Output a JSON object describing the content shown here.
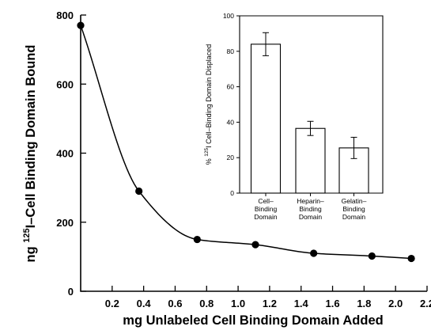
{
  "chart_data": [
    {
      "type": "scatter",
      "title": "",
      "xlabel": "mg Unlabeled Cell Binding Domain Added",
      "ylabel": "ng ¹²⁵I–Cell Binding Domain Bound",
      "ylabel_parts": {
        "prefix": "ng ",
        "superscript": "125",
        "suffix": "I–Cell Binding Domain Bound"
      },
      "xlim": [
        0,
        2.2
      ],
      "ylim": [
        0,
        800
      ],
      "xticks": [
        0.2,
        0.4,
        0.6,
        0.8,
        1.0,
        1.2,
        1.4,
        1.6,
        1.8,
        2.0,
        2.2
      ],
      "xtick_labels": [
        "0.2",
        "0.4",
        "0.6",
        "0.8",
        "1.0",
        "1.2",
        "1.4",
        "1.6",
        "1.8",
        "2.0",
        "2.2"
      ],
      "yticks": [
        0,
        200,
        400,
        600,
        800
      ],
      "ytick_labels": [
        "0",
        "200",
        "400",
        "600",
        "800"
      ],
      "x": [
        0.0,
        0.37,
        0.74,
        1.11,
        1.48,
        1.85,
        2.1
      ],
      "y": [
        770,
        290,
        150,
        135,
        110,
        102,
        95
      ],
      "fit_curve": true,
      "grid": false
    },
    {
      "type": "bar",
      "inset": true,
      "title": "",
      "xlabel": "",
      "ylabel": "% ¹²⁵I Cell–Binding Domain Displaced",
      "ylabel_parts": {
        "prefix": "% ",
        "superscript": "125",
        "suffix": "I Cell–Binding Domain Displaced"
      },
      "ylim": [
        0,
        100
      ],
      "yticks": [
        0,
        20,
        40,
        60,
        80,
        100
      ],
      "ytick_labels": [
        "0",
        "20",
        "40",
        "60",
        "80",
        "100"
      ],
      "categories": [
        "Cell–Binding Domain",
        "Heparin–Binding Domain",
        "Gelatin–Binding Domain"
      ],
      "category_lines": [
        [
          "Cell–",
          "Binding",
          "Domain"
        ],
        [
          "Heparin–",
          "Binding",
          "Domain"
        ],
        [
          "Gelatin–",
          "Binding",
          "Domain"
        ]
      ],
      "values": [
        84,
        36.5,
        25.5
      ],
      "errors": [
        6.5,
        4,
        6
      ],
      "grid": false
    }
  ]
}
